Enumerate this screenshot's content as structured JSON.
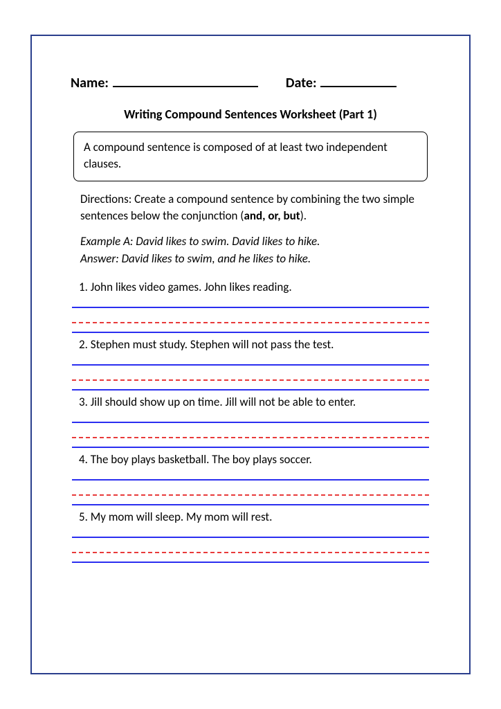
{
  "colors": {
    "page_border": "#2a3e8c",
    "text": "#000000",
    "background": "#ffffff",
    "solid_line": "#2a2ef0",
    "dashed_line": "#e83a3a"
  },
  "typography": {
    "family": "Calibri",
    "header_fontsize": 20,
    "title_fontsize": 18,
    "body_fontsize": 17
  },
  "header": {
    "name_label": "Name:",
    "date_label": "Date:"
  },
  "title": "Writing Compound Sentences Worksheet (Part 1)",
  "definition": "A compound sentence is composed of at least two independent clauses.",
  "directions": {
    "pre": "Directions: Create a compound sentence by combining the two simple sentences below the conjunction (",
    "bold": "and, or, but",
    "post": ")."
  },
  "example": {
    "line1": "Example A: David likes to swim. David likes to hike.",
    "line2": "Answer: David likes to swim, and he likes to hike."
  },
  "questions": [
    {
      "num": "1.",
      "text": "John likes video games. John likes reading."
    },
    {
      "num": "2.",
      "text": "Stephen must study. Stephen will not pass the test."
    },
    {
      "num": "3.",
      "text": "Jill should show up on time. Jill will not be able to enter."
    },
    {
      "num": "4.",
      "text": "The boy plays basketball. The boy plays soccer."
    },
    {
      "num": "5.",
      "text": "My mom will sleep. My mom will rest."
    }
  ],
  "writing_lines": {
    "per_question": [
      "solid",
      "dashed",
      "solid"
    ],
    "solid_color": "#2a2ef0",
    "dashed_color": "#e83a3a"
  }
}
